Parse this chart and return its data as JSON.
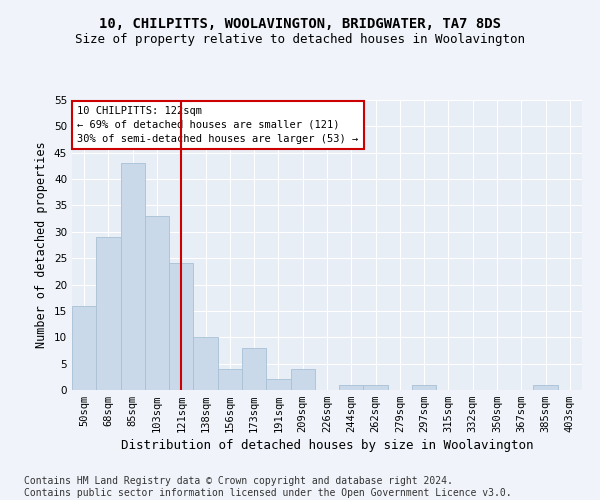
{
  "title": "10, CHILPITTS, WOOLAVINGTON, BRIDGWATER, TA7 8DS",
  "subtitle": "Size of property relative to detached houses in Woolavington",
  "xlabel": "Distribution of detached houses by size in Woolavington",
  "ylabel": "Number of detached properties",
  "categories": [
    "50sqm",
    "68sqm",
    "85sqm",
    "103sqm",
    "121sqm",
    "138sqm",
    "156sqm",
    "173sqm",
    "191sqm",
    "209sqm",
    "226sqm",
    "244sqm",
    "262sqm",
    "279sqm",
    "297sqm",
    "315sqm",
    "332sqm",
    "350sqm",
    "367sqm",
    "385sqm",
    "403sqm"
  ],
  "values": [
    16,
    29,
    43,
    33,
    24,
    10,
    4,
    8,
    2,
    4,
    0,
    1,
    1,
    0,
    1,
    0,
    0,
    0,
    0,
    1,
    0
  ],
  "bar_color": "#c9d9ea",
  "bar_edge_color": "#a8c0d6",
  "vline_x_index": 4,
  "vline_color": "#cc0000",
  "annotation_text": "10 CHILPITTS: 122sqm\n← 69% of detached houses are smaller (121)\n30% of semi-detached houses are larger (53) →",
  "annotation_box_color": "#ffffff",
  "annotation_box_edge": "#cc0000",
  "ylim": [
    0,
    55
  ],
  "yticks": [
    0,
    5,
    10,
    15,
    20,
    25,
    30,
    35,
    40,
    45,
    50,
    55
  ],
  "footnote": "Contains HM Land Registry data © Crown copyright and database right 2024.\nContains public sector information licensed under the Open Government Licence v3.0.",
  "bg_color": "#f0f4fa",
  "plot_bg_color": "#e8eef6",
  "grid_color": "#ffffff",
  "title_fontsize": 10,
  "subtitle_fontsize": 9,
  "xlabel_fontsize": 9,
  "ylabel_fontsize": 8.5,
  "tick_fontsize": 7.5,
  "footnote_fontsize": 7
}
